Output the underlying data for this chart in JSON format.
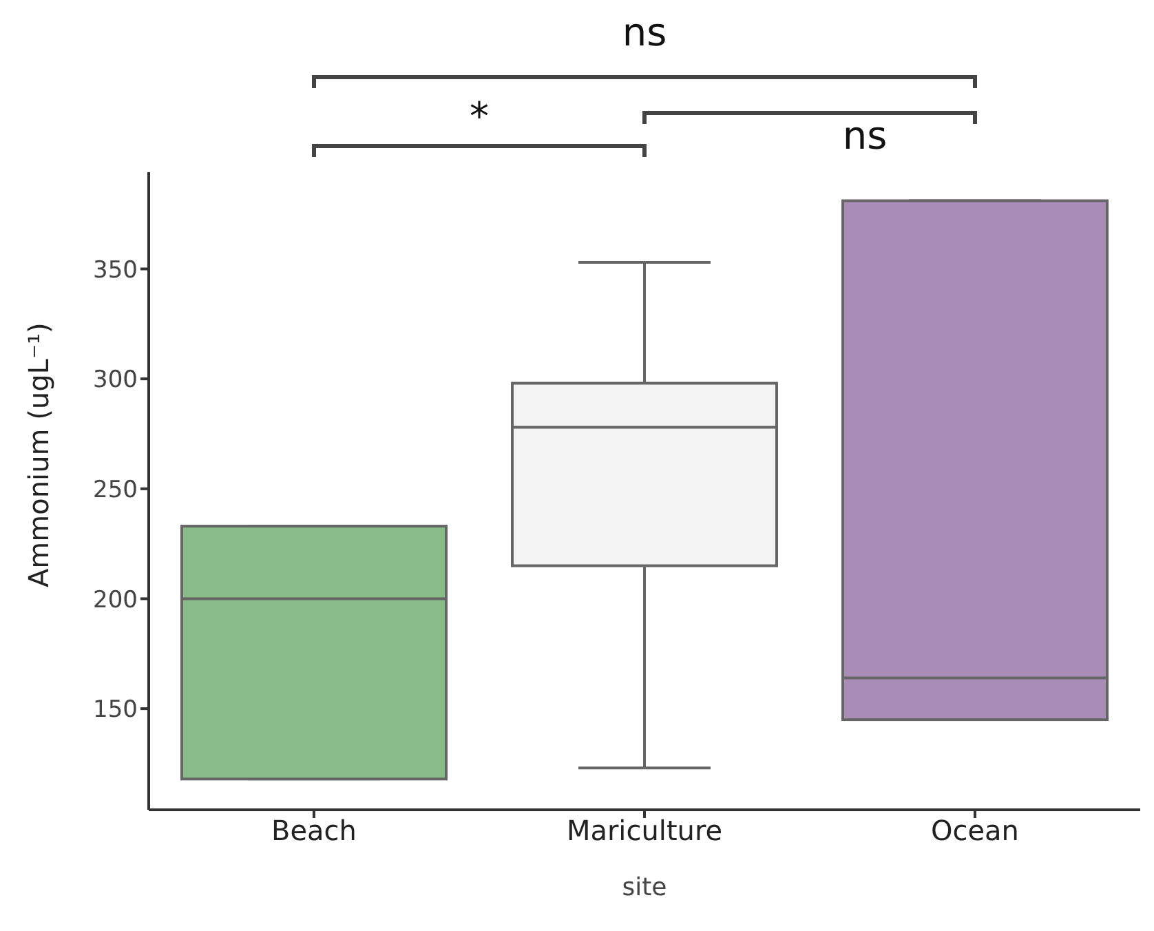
{
  "chart_data": {
    "type": "box",
    "xlabel": "site",
    "ylabel": "Ammonium (ugL⁻¹)",
    "categories": [
      "Beach",
      "Mariculture",
      "Ocean"
    ],
    "boxes": [
      {
        "low": 118,
        "q1": 118,
        "median": 200,
        "q3": 233,
        "high": 233
      },
      {
        "low": 123,
        "q1": 215,
        "median": 278,
        "q3": 298,
        "high": 353
      },
      {
        "low": 145,
        "q1": 145,
        "median": 164,
        "q3": 381,
        "high": 381
      }
    ],
    "colors": [
      "#88bb88",
      "#f4f4f4",
      "#a98db6"
    ],
    "ylim": [
      104,
      394
    ],
    "yticks": [
      150,
      200,
      250,
      300,
      350
    ],
    "grid": false,
    "legend": false,
    "annotations": [
      "ns",
      "*",
      "ns"
    ]
  }
}
